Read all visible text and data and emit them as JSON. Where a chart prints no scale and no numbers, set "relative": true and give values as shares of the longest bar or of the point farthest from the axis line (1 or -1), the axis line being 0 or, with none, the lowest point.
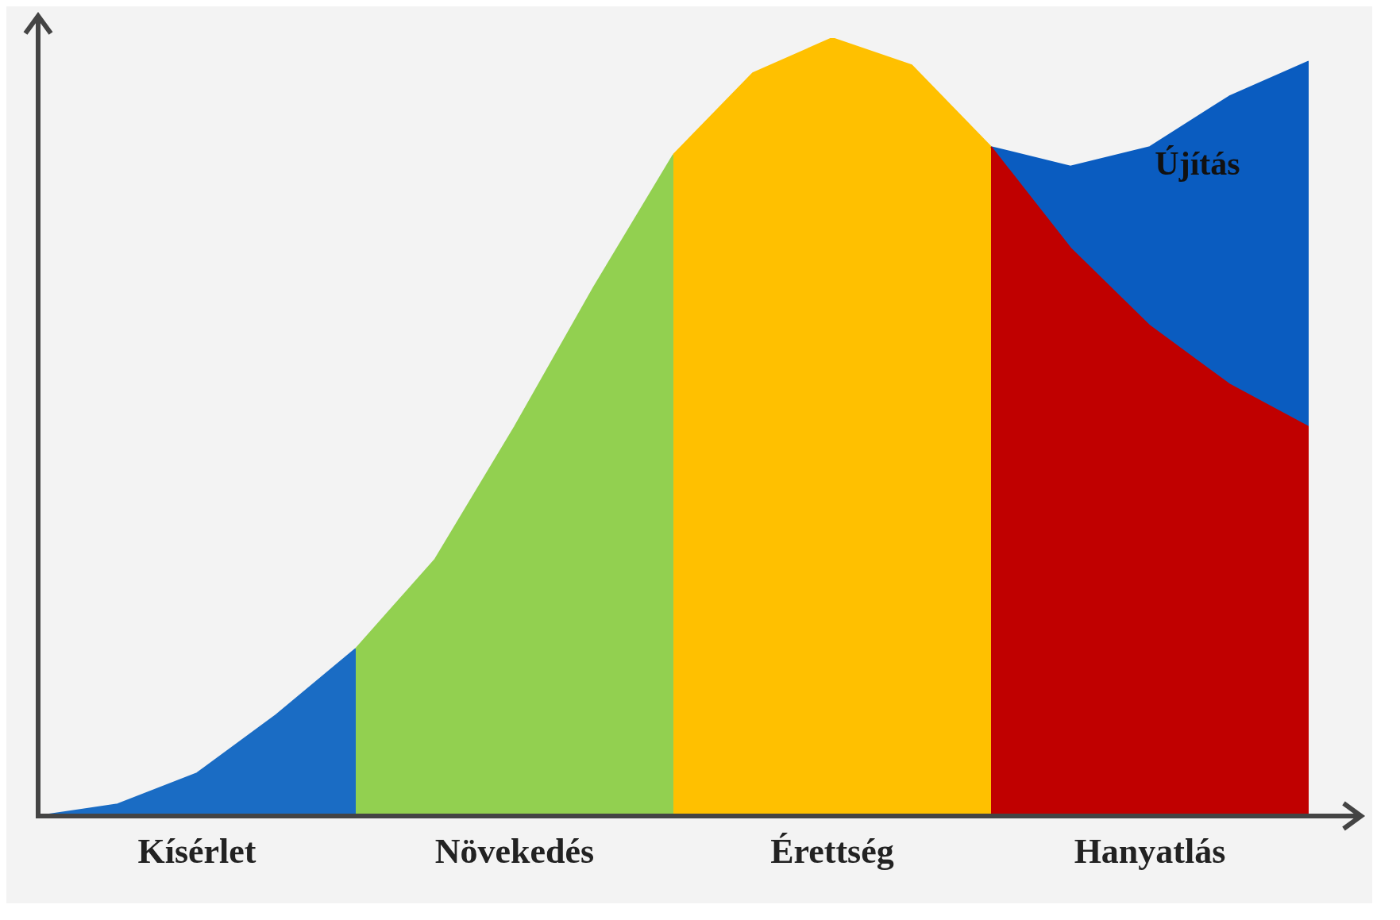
{
  "chart_data": {
    "type": "area",
    "relative": true,
    "tick_labels": "x",
    "categories": [
      null,
      null,
      "Kísérlet",
      null,
      null,
      null,
      "Növekedés",
      null,
      null,
      null,
      "Érettség",
      null,
      null,
      null,
      "Hanyatlás",
      null,
      null
    ],
    "series": [
      {
        "color": "#1a6cc4",
        "values": [
          0,
          0.015,
          0.055,
          0.13,
          0.215,
          null,
          null,
          null,
          null,
          null,
          null,
          null,
          null,
          null,
          null,
          null,
          null
        ]
      },
      {
        "color": "#92d050",
        "values": [
          null,
          null,
          null,
          null,
          0.215,
          0.33,
          0.5,
          0.68,
          0.85,
          null,
          null,
          null,
          null,
          null,
          null,
          null,
          null
        ]
      },
      {
        "color": "#ffc000",
        "values": [
          null,
          null,
          null,
          null,
          null,
          null,
          null,
          null,
          0.85,
          0.955,
          1,
          0.965,
          0.86,
          null,
          null,
          null,
          null
        ]
      },
      {
        "name": "Újítás",
        "color": "#0a5cc0",
        "values": [
          null,
          null,
          null,
          null,
          null,
          null,
          null,
          null,
          null,
          null,
          null,
          null,
          0.86,
          0.835,
          0.86,
          0.925,
          0.97
        ]
      },
      {
        "color": "#c00000",
        "values": [
          null,
          null,
          null,
          null,
          null,
          null,
          null,
          null,
          null,
          null,
          null,
          null,
          0.86,
          0.73,
          0.63,
          0.555,
          0.5
        ]
      }
    ]
  }
}
